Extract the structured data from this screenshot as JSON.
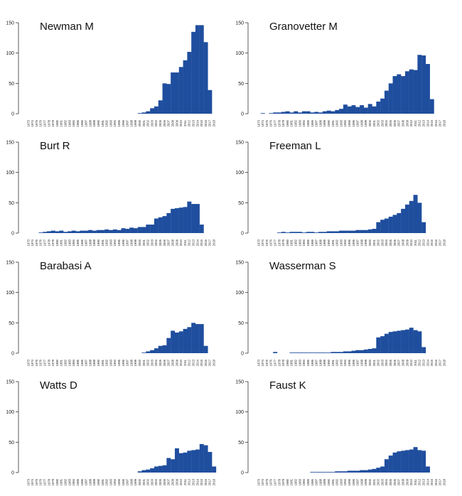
{
  "chart_data": [
    {
      "type": "bar",
      "title": "Newman M",
      "ylim": [
        0,
        150
      ],
      "yticks": [
        0,
        50,
        100,
        150
      ],
      "categories": [
        "1973",
        "1974",
        "1975",
        "1976",
        "1977",
        "1978",
        "1979",
        "1980",
        "1981",
        "1982",
        "1983",
        "1984",
        "1985",
        "1986",
        "1987",
        "1988",
        "1989",
        "1990",
        "1991",
        "1992",
        "1993",
        "1994",
        "1995",
        "1996",
        "1997",
        "1998",
        "1999",
        "2000",
        "2001",
        "2002",
        "2003",
        "2004",
        "2005",
        "2006",
        "2007",
        "2008",
        "2009",
        "2010",
        "2011",
        "2012",
        "2013",
        "2014",
        "2015",
        "2016",
        "2017",
        "2018"
      ],
      "values": [
        0,
        0,
        0,
        0,
        0,
        0,
        0,
        0,
        0,
        0,
        0,
        0,
        0,
        0,
        0,
        0,
        0,
        0,
        0,
        0,
        0,
        0,
        0,
        0,
        0,
        0,
        0,
        1,
        2,
        4,
        9,
        12,
        22,
        50,
        49,
        68,
        68,
        77,
        88,
        102,
        135,
        146,
        146,
        118,
        39,
        0
      ]
    },
    {
      "type": "bar",
      "title": "Granovetter M",
      "ylim": [
        0,
        150
      ],
      "yticks": [
        0,
        50,
        100,
        150
      ],
      "categories": [
        "1973",
        "1974",
        "1975",
        "1976",
        "1977",
        "1978",
        "1979",
        "1980",
        "1981",
        "1982",
        "1983",
        "1984",
        "1985",
        "1986",
        "1987",
        "1988",
        "1989",
        "1990",
        "1991",
        "1992",
        "1993",
        "1994",
        "1995",
        "1996",
        "1997",
        "1998",
        "1999",
        "2000",
        "2001",
        "2002",
        "2003",
        "2004",
        "2005",
        "2006",
        "2007",
        "2008",
        "2009",
        "2010",
        "2011",
        "2012",
        "2013",
        "2014",
        "2015",
        "2016",
        "2017",
        "2018"
      ],
      "values": [
        0,
        1,
        0,
        1,
        2,
        2,
        3,
        4,
        2,
        4,
        2,
        4,
        4,
        2,
        3,
        2,
        4,
        5,
        4,
        6,
        8,
        15,
        12,
        14,
        11,
        14,
        10,
        16,
        12,
        20,
        25,
        38,
        50,
        62,
        65,
        62,
        70,
        73,
        72,
        97,
        96,
        82,
        24,
        0,
        0,
        0
      ]
    },
    {
      "type": "bar",
      "title": "Burt R",
      "ylim": [
        0,
        150
      ],
      "yticks": [
        0,
        50,
        100,
        150
      ],
      "categories": [
        "1973",
        "1974",
        "1975",
        "1976",
        "1977",
        "1978",
        "1979",
        "1980",
        "1981",
        "1982",
        "1983",
        "1984",
        "1985",
        "1986",
        "1987",
        "1988",
        "1989",
        "1990",
        "1991",
        "1992",
        "1993",
        "1994",
        "1995",
        "1996",
        "1997",
        "1998",
        "1999",
        "2000",
        "2001",
        "2002",
        "2003",
        "2004",
        "2005",
        "2006",
        "2007",
        "2008",
        "2009",
        "2010",
        "2011",
        "2012",
        "2013",
        "2014",
        "2015",
        "2016",
        "2017",
        "2018"
      ],
      "values": [
        0,
        0,
        0,
        1,
        2,
        3,
        4,
        3,
        4,
        2,
        3,
        4,
        3,
        4,
        4,
        5,
        4,
        5,
        5,
        6,
        5,
        6,
        5,
        8,
        7,
        9,
        8,
        10,
        10,
        14,
        14,
        24,
        26,
        28,
        33,
        40,
        41,
        42,
        43,
        52,
        48,
        48,
        14,
        0,
        0,
        0
      ]
    },
    {
      "type": "bar",
      "title": "Freeman L",
      "ylim": [
        0,
        150
      ],
      "yticks": [
        0,
        50,
        100,
        150
      ],
      "categories": [
        "1973",
        "1974",
        "1975",
        "1976",
        "1977",
        "1978",
        "1979",
        "1980",
        "1981",
        "1982",
        "1983",
        "1984",
        "1985",
        "1986",
        "1987",
        "1988",
        "1989",
        "1990",
        "1991",
        "1992",
        "1993",
        "1994",
        "1995",
        "1996",
        "1997",
        "1998",
        "1999",
        "2000",
        "2001",
        "2002",
        "2003",
        "2004",
        "2005",
        "2006",
        "2007",
        "2008",
        "2009",
        "2010",
        "2011",
        "2012",
        "2013",
        "2014",
        "2015",
        "2016",
        "2017",
        "2018"
      ],
      "values": [
        0,
        0,
        0,
        0,
        0,
        1,
        2,
        1,
        2,
        2,
        2,
        1,
        2,
        2,
        1,
        2,
        2,
        3,
        3,
        3,
        4,
        4,
        4,
        4,
        5,
        5,
        5,
        6,
        7,
        18,
        22,
        24,
        27,
        30,
        33,
        40,
        47,
        53,
        63,
        50,
        18,
        0,
        0,
        0,
        0,
        0
      ]
    },
    {
      "type": "bar",
      "title": "Barabasi A",
      "ylim": [
        0,
        150
      ],
      "yticks": [
        0,
        50,
        100,
        150
      ],
      "categories": [
        "1973",
        "1974",
        "1975",
        "1976",
        "1977",
        "1978",
        "1979",
        "1980",
        "1981",
        "1982",
        "1983",
        "1984",
        "1985",
        "1986",
        "1987",
        "1988",
        "1989",
        "1990",
        "1991",
        "1992",
        "1993",
        "1994",
        "1995",
        "1996",
        "1997",
        "1998",
        "1999",
        "2000",
        "2001",
        "2002",
        "2003",
        "2004",
        "2005",
        "2006",
        "2007",
        "2008",
        "2009",
        "2010",
        "2011",
        "2012",
        "2013",
        "2014",
        "2015",
        "2016",
        "2017",
        "2018"
      ],
      "values": [
        0,
        0,
        0,
        0,
        0,
        0,
        0,
        0,
        0,
        0,
        0,
        0,
        0,
        0,
        0,
        0,
        0,
        0,
        0,
        0,
        0,
        0,
        0,
        0,
        0,
        0,
        0,
        0,
        1,
        3,
        5,
        8,
        12,
        13,
        25,
        37,
        34,
        36,
        40,
        43,
        50,
        48,
        48,
        12,
        0,
        0
      ]
    },
    {
      "type": "bar",
      "title": "Wasserman S",
      "ylim": [
        0,
        150
      ],
      "yticks": [
        0,
        50,
        100,
        150
      ],
      "categories": [
        "1973",
        "1974",
        "1975",
        "1976",
        "1977",
        "1978",
        "1979",
        "1980",
        "1981",
        "1982",
        "1983",
        "1984",
        "1985",
        "1986",
        "1987",
        "1988",
        "1989",
        "1990",
        "1991",
        "1992",
        "1993",
        "1994",
        "1995",
        "1996",
        "1997",
        "1998",
        "1999",
        "2000",
        "2001",
        "2002",
        "2003",
        "2004",
        "2005",
        "2006",
        "2007",
        "2008",
        "2009",
        "2010",
        "2011",
        "2012",
        "2013",
        "2014",
        "2015",
        "2016",
        "2017",
        "2018"
      ],
      "values": [
        0,
        0,
        0,
        0,
        2,
        0,
        0,
        0,
        1,
        1,
        1,
        1,
        1,
        1,
        1,
        1,
        1,
        1,
        2,
        2,
        2,
        3,
        3,
        4,
        5,
        5,
        6,
        7,
        8,
        26,
        28,
        32,
        35,
        36,
        37,
        38,
        39,
        42,
        38,
        36,
        10,
        0,
        0,
        0,
        0,
        0
      ]
    },
    {
      "type": "bar",
      "title": "Watts D",
      "ylim": [
        0,
        150
      ],
      "yticks": [
        0,
        50,
        100,
        150
      ],
      "categories": [
        "1973",
        "1974",
        "1975",
        "1976",
        "1977",
        "1978",
        "1979",
        "1980",
        "1981",
        "1982",
        "1983",
        "1984",
        "1985",
        "1986",
        "1987",
        "1988",
        "1989",
        "1990",
        "1991",
        "1992",
        "1993",
        "1994",
        "1995",
        "1996",
        "1997",
        "1998",
        "1999",
        "2000",
        "2001",
        "2002",
        "2003",
        "2004",
        "2005",
        "2006",
        "2007",
        "2008",
        "2009",
        "2010",
        "2011",
        "2012",
        "2013",
        "2014",
        "2015",
        "2016",
        "2017",
        "2018"
      ],
      "values": [
        0,
        0,
        0,
        0,
        0,
        0,
        0,
        0,
        0,
        0,
        0,
        0,
        0,
        0,
        0,
        0,
        0,
        0,
        0,
        0,
        0,
        0,
        0,
        0,
        0,
        0,
        0,
        2,
        4,
        5,
        7,
        10,
        11,
        12,
        24,
        22,
        40,
        32,
        33,
        36,
        37,
        38,
        47,
        45,
        34,
        10
      ]
    },
    {
      "type": "bar",
      "title": "Faust K",
      "ylim": [
        0,
        150
      ],
      "yticks": [
        0,
        50,
        100,
        150
      ],
      "categories": [
        "1973",
        "1974",
        "1975",
        "1976",
        "1977",
        "1978",
        "1979",
        "1980",
        "1981",
        "1982",
        "1983",
        "1984",
        "1985",
        "1986",
        "1987",
        "1988",
        "1989",
        "1990",
        "1991",
        "1992",
        "1993",
        "1994",
        "1995",
        "1996",
        "1997",
        "1998",
        "1999",
        "2000",
        "2001",
        "2002",
        "2003",
        "2004",
        "2005",
        "2006",
        "2007",
        "2008",
        "2009",
        "2010",
        "2011",
        "2012",
        "2013",
        "2014",
        "2015",
        "2016",
        "2017",
        "2018"
      ],
      "values": [
        0,
        0,
        0,
        0,
        0,
        0,
        0,
        0,
        0,
        0,
        0,
        0,
        0,
        1,
        1,
        1,
        1,
        1,
        1,
        2,
        2,
        2,
        3,
        3,
        3,
        4,
        4,
        5,
        6,
        8,
        10,
        22,
        28,
        33,
        35,
        36,
        37,
        38,
        42,
        37,
        36,
        10,
        0,
        0,
        0,
        0
      ]
    }
  ],
  "colors": {
    "bar": "#1f4e9e",
    "bar_edge": "#163c7c",
    "axis": "#333333",
    "text": "#111111"
  }
}
